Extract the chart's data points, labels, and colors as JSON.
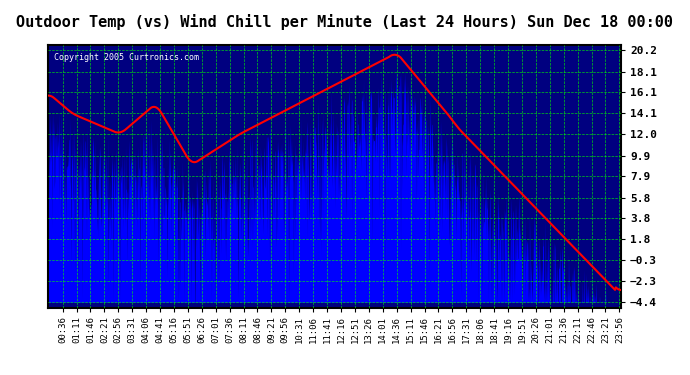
{
  "title": "Outdoor Temp (vs) Wind Chill per Minute (Last 24 Hours) Sun Dec 18 00:00",
  "copyright": "Copyright 2005 Curtronics.com",
  "y_ticks": [
    20.2,
    18.1,
    16.1,
    14.1,
    12.0,
    9.9,
    7.9,
    5.8,
    3.8,
    1.8,
    -0.3,
    -2.3,
    -4.4
  ],
  "y_min": -4.4,
  "y_max": 20.2,
  "x_labels": [
    "00:36",
    "01:11",
    "01:46",
    "02:21",
    "02:56",
    "03:31",
    "04:06",
    "04:41",
    "05:16",
    "05:51",
    "06:26",
    "07:01",
    "07:36",
    "08:11",
    "08:46",
    "09:21",
    "09:56",
    "10:31",
    "11:06",
    "11:41",
    "12:16",
    "12:51",
    "13:26",
    "14:01",
    "14:36",
    "15:11",
    "15:46",
    "16:21",
    "16:56",
    "17:31",
    "18:06",
    "18:41",
    "19:16",
    "19:51",
    "20:26",
    "21:01",
    "21:36",
    "22:11",
    "22:46",
    "23:21",
    "23:56"
  ],
  "background_color": "#000080",
  "plot_bg_color": "#000080",
  "line_color_blue": "#0000FF",
  "line_color_red": "#FF0000",
  "grid_color": "#00FF00",
  "title_bg": "#FFFFFF",
  "title_color": "#000000",
  "bar_color": "#0000FF",
  "red_line_color": "#FF0000"
}
